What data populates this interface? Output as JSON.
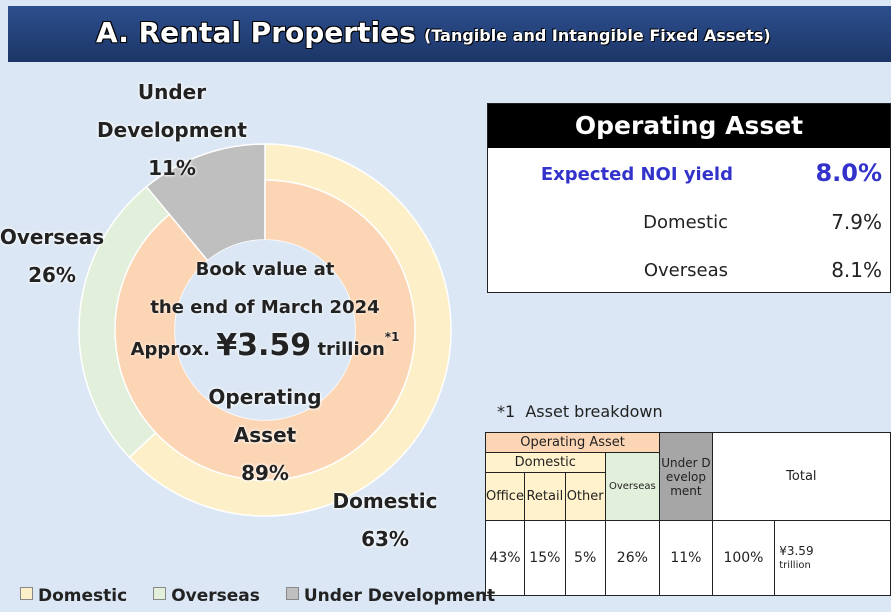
{
  "header": {
    "title": "A. Rental Properties",
    "subtitle": "(Tangible and Intangible Fixed Assets)"
  },
  "chart_data": {
    "type": "donut",
    "categories": [
      "Domestic",
      "Overseas",
      "Under Development"
    ],
    "values": [
      63,
      26,
      11
    ],
    "value_labels": [
      "63%",
      "26%",
      "11%"
    ],
    "colors": [
      "#fdf0c8",
      "#e2efda",
      "#bfbfbf"
    ],
    "inner": {
      "categories": [
        "Operating Asset"
      ],
      "values": [
        89
      ],
      "value_labels": [
        "89%"
      ],
      "colors": [
        "#fcd5b4"
      ]
    },
    "center": {
      "lines": [
        "Book value at",
        "the end of March 2024"
      ],
      "approx": "Approx.",
      "amount": "¥3.59",
      "unit": "trillion",
      "note": "*1"
    },
    "legend": "bottom-left"
  },
  "yield_box": {
    "title": "Operating Asset",
    "rows": [
      [
        "Expected NOI yield",
        "8.0%"
      ],
      [
        "Domestic",
        "7.9%"
      ],
      [
        "Overseas",
        "8.1%"
      ]
    ]
  },
  "breakdown": {
    "caption": "*1  Asset breakdown",
    "operating": "Operating Asset",
    "domestic": "Domestic",
    "items": [
      "Office",
      "Retail",
      "Other"
    ],
    "overseas": "Overseas",
    "under": "Under Development",
    "total": "Total",
    "values": [
      "43%",
      "15%",
      "5%",
      "26%",
      "11%",
      "100%"
    ],
    "amount": "¥3.59",
    "unit": "trillion"
  }
}
